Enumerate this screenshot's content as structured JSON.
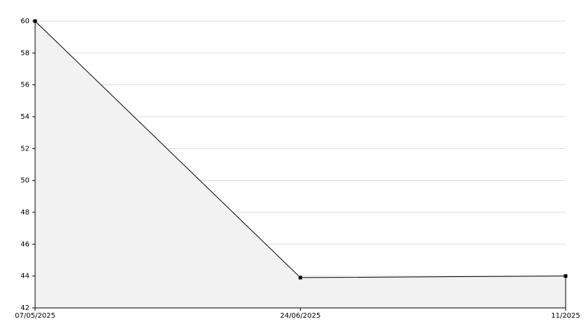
{
  "chart_data": {
    "type": "area",
    "categories": [
      "07/05/2025",
      "24/06/2025",
      "11/2025"
    ],
    "values": [
      60,
      43.9,
      44
    ],
    "color": "#000000",
    "fill": "#f2f2f2",
    "ylim": [
      42,
      60
    ],
    "yticks": [
      42,
      44,
      46,
      48,
      50,
      52,
      54,
      56,
      58,
      60
    ],
    "grid": true
  }
}
